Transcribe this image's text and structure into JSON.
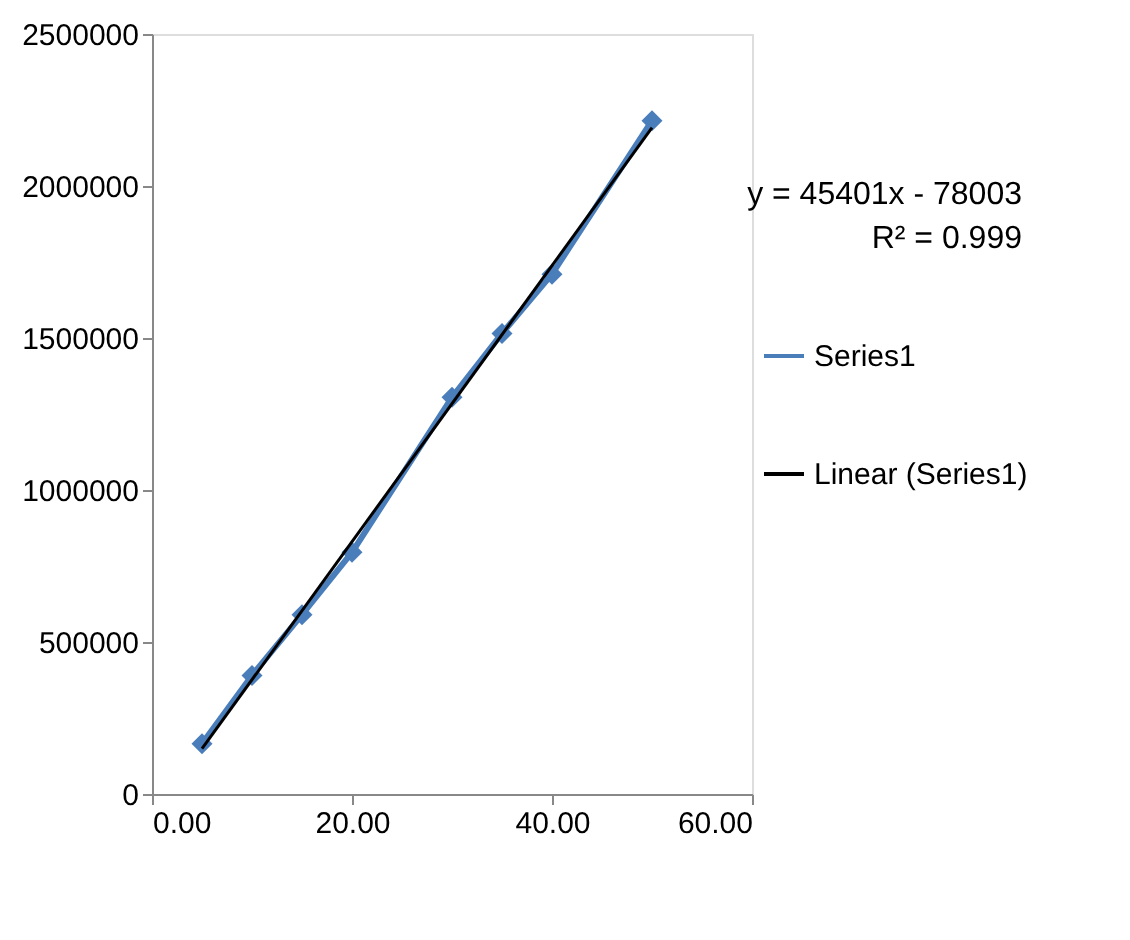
{
  "chart_data": {
    "type": "line",
    "marker": "diamond",
    "legend": "right",
    "grid": false,
    "xlim": [
      0,
      60
    ],
    "xticks": [
      {
        "value": 0,
        "label": "0.00"
      },
      {
        "value": 20,
        "label": "20.00"
      },
      {
        "value": 40,
        "label": "40.00"
      },
      {
        "value": 60,
        "label": "60.00"
      }
    ],
    "ylim": [
      0,
      2500000
    ],
    "yticks": [
      0,
      500000,
      1000000,
      1500000,
      2000000,
      2500000
    ],
    "annotations": [
      "y = 45401x - 78003",
      "R² = 0.999"
    ],
    "series": [
      {
        "name": "Series1",
        "color": "#4a7ebb",
        "x": [
          5,
          10,
          15,
          20,
          30,
          35,
          40,
          50
        ],
        "values": [
          165000,
          390000,
          590000,
          795000,
          1305000,
          1515000,
          1710000,
          2215000
        ]
      },
      {
        "name": "Linear (Series1)",
        "color": "#000000",
        "type": "line",
        "marker": "none",
        "x": [
          5,
          50
        ],
        "values": [
          149000,
          2192000
        ]
      }
    ]
  }
}
